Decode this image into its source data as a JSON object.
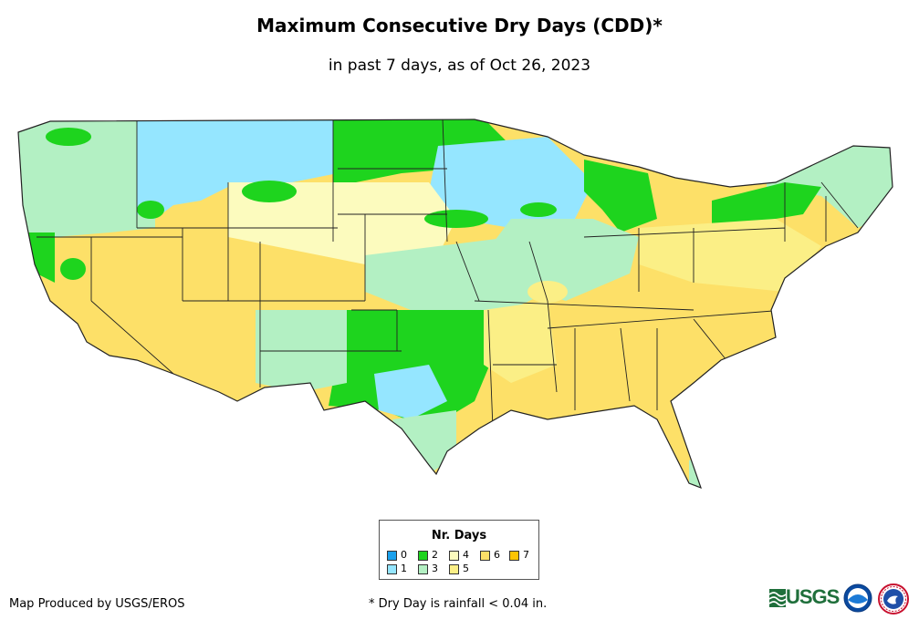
{
  "title": "Maximum Consecutive Dry Days (CDD)*",
  "subtitle": "in past 7 days, as of Oct 26, 2023",
  "legend": {
    "title": "Nr. Days",
    "items": [
      {
        "label": "0",
        "color": "#1aa0ec"
      },
      {
        "label": "1",
        "color": "#95e6ff"
      },
      {
        "label": "2",
        "color": "#1ed41e"
      },
      {
        "label": "3",
        "color": "#b3f0c3"
      },
      {
        "label": "4",
        "color": "#fcfbbe"
      },
      {
        "label": "5",
        "color": "#fbef86"
      },
      {
        "label": "6",
        "color": "#fde068"
      },
      {
        "label": "7",
        "color": "#fdc402"
      }
    ]
  },
  "footer": {
    "producer": "Map Produced by USGS/EROS",
    "footnote": "* Dry Day is rainfall < 0.04 in."
  },
  "logos": {
    "usgs": {
      "text": "USGS",
      "icon": "usgs-wave-icon"
    },
    "noaa": {
      "icon": "noaa-logo-icon"
    },
    "nws": {
      "icon": "nws-logo-icon"
    }
  }
}
